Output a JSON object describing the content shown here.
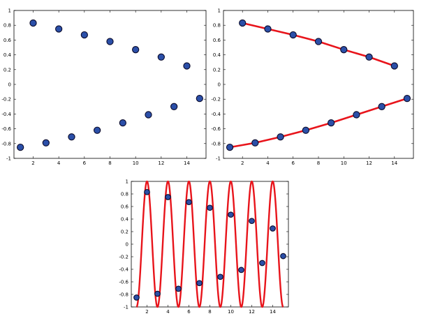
{
  "chart_data": [
    {
      "type": "scatter",
      "title": "",
      "xlabel": "",
      "ylabel": "",
      "xlim": [
        0.5,
        15.5
      ],
      "ylim": [
        -1,
        1
      ],
      "grid": false,
      "xticks": [
        2,
        4,
        6,
        8,
        10,
        12,
        14
      ],
      "yticks": [
        1,
        0.8,
        0.6,
        0.4,
        0.2,
        0,
        -0.2,
        -0.4,
        -0.6,
        -0.8,
        -1
      ],
      "series": [
        {
          "kind": "markers",
          "x": [
            1,
            2,
            3,
            4,
            5,
            6,
            7,
            8,
            9,
            10,
            11,
            12,
            13,
            14,
            15
          ],
          "y": [
            -0.85,
            0.83,
            -0.79,
            0.75,
            -0.71,
            0.67,
            -0.62,
            0.58,
            -0.52,
            0.47,
            -0.41,
            0.37,
            -0.3,
            0.25,
            -0.19
          ]
        }
      ]
    },
    {
      "type": "line",
      "title": "",
      "xlabel": "",
      "ylabel": "",
      "xlim": [
        0.5,
        15.5
      ],
      "ylim": [
        -1,
        1
      ],
      "grid": false,
      "xticks": [
        2,
        4,
        6,
        8,
        10,
        12,
        14
      ],
      "yticks": [
        1,
        0.8,
        0.6,
        0.4,
        0.2,
        0,
        -0.2,
        -0.4,
        -0.6,
        -0.8,
        -1
      ],
      "series": [
        {
          "kind": "line",
          "x": [
            1,
            3,
            5,
            7,
            9,
            11,
            13,
            15
          ],
          "y": [
            -0.85,
            -0.79,
            -0.71,
            -0.62,
            -0.52,
            -0.41,
            -0.3,
            -0.19
          ]
        },
        {
          "kind": "line",
          "x": [
            2,
            4,
            6,
            8,
            10,
            12,
            14
          ],
          "y": [
            0.83,
            0.75,
            0.67,
            0.58,
            0.47,
            0.37,
            0.25
          ]
        },
        {
          "kind": "markers",
          "x": [
            1,
            2,
            3,
            4,
            5,
            6,
            7,
            8,
            9,
            10,
            11,
            12,
            13,
            14,
            15
          ],
          "y": [
            -0.85,
            0.83,
            -0.79,
            0.75,
            -0.71,
            0.67,
            -0.62,
            0.58,
            -0.52,
            0.47,
            -0.41,
            0.37,
            -0.3,
            0.25,
            -0.19
          ]
        }
      ]
    },
    {
      "type": "line",
      "title": "",
      "xlabel": "",
      "ylabel": "",
      "xlim": [
        0.5,
        15.5
      ],
      "ylim": [
        -1,
        1
      ],
      "grid": false,
      "xticks": [
        2,
        4,
        6,
        8,
        10,
        12,
        14
      ],
      "yticks": [
        1,
        0.8,
        0.6,
        0.4,
        0.2,
        0,
        -0.2,
        -0.4,
        -0.6,
        -0.8,
        -1
      ],
      "series": [
        {
          "kind": "curve",
          "function": "cos(pi * x)",
          "x_range": [
            1,
            15
          ]
        },
        {
          "kind": "markers",
          "x": [
            1,
            2,
            3,
            4,
            5,
            6,
            7,
            8,
            9,
            10,
            11,
            12,
            13,
            14,
            15
          ],
          "y": [
            -0.85,
            0.83,
            -0.79,
            0.75,
            -0.71,
            0.67,
            -0.62,
            0.58,
            -0.52,
            0.47,
            -0.41,
            0.37,
            -0.3,
            0.25,
            -0.19
          ]
        }
      ]
    }
  ],
  "colors": {
    "line": "#e8141b",
    "marker_fill": "#2b4fa8",
    "marker_edge": "#0a0a2a",
    "axes": "#000000"
  }
}
